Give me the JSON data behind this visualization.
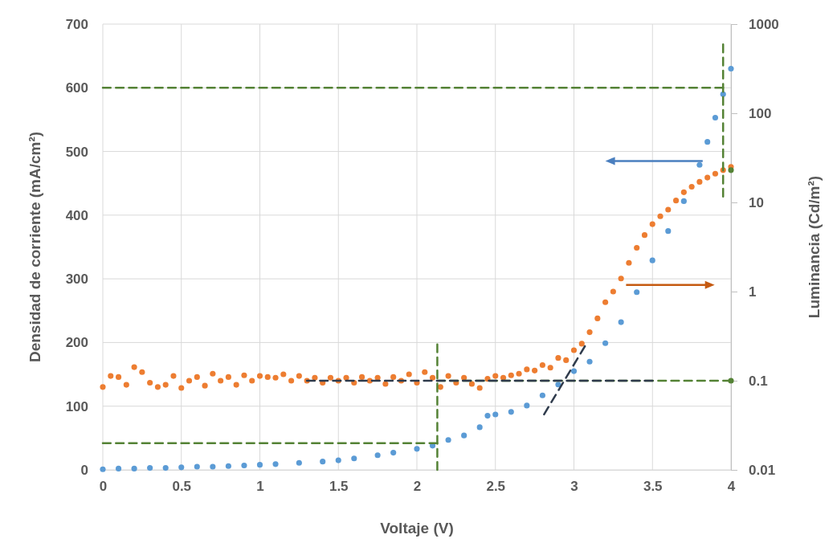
{
  "chart_data": {
    "type": "scatter",
    "xlabel": "Voltaje (V)",
    "ylabel": "Densidad de corriente (mA/cm²)",
    "y2label": "Luminancia (Cd/m²)",
    "xlim": [
      0,
      4
    ],
    "xticks": [
      0,
      0.5,
      1,
      1.5,
      2,
      2.5,
      3,
      3.5,
      4
    ],
    "ylim": [
      0,
      700
    ],
    "yticks": [
      0,
      100,
      200,
      300,
      400,
      500,
      600,
      700
    ],
    "y2lim": [
      0.01,
      1000
    ],
    "y2ticks": [
      0.01,
      0.1,
      1,
      10,
      100,
      1000
    ],
    "log": "y2",
    "grid": true,
    "series": [
      {
        "marker": "circle",
        "color": "#5b9bd5",
        "x": [
          0,
          0.1,
          0.2,
          0.3,
          0.4,
          0.5,
          0.6,
          0.7,
          0.8,
          0.9,
          1,
          1.1,
          1.25,
          1.4,
          1.5,
          1.6,
          1.75,
          1.85,
          2,
          2.1,
          2.2,
          2.3,
          2.4,
          2.45,
          2.5,
          2.6,
          2.7,
          2.8,
          2.9,
          3,
          3.1,
          3.2,
          3.3,
          3.4,
          3.5,
          3.6,
          3.7,
          3.8,
          3.85,
          3.9,
          3.95,
          4
        ],
        "values": [
          1,
          2,
          2,
          3,
          3,
          4,
          5,
          5,
          6,
          7,
          8,
          9,
          11,
          13,
          15,
          18,
          23,
          27,
          33,
          38,
          47,
          54,
          67,
          85,
          87,
          91,
          101,
          117,
          134,
          155,
          170,
          199,
          232,
          279,
          329,
          375,
          422,
          479,
          515,
          553,
          590,
          630
        ]
      },
      {
        "marker": "circle",
        "color": "#ed7d31",
        "axis": "y2",
        "x": [
          0,
          0.05,
          0.1,
          0.15,
          0.2,
          0.25,
          0.3,
          0.35,
          0.4,
          0.45,
          0.5,
          0.55,
          0.6,
          0.65,
          0.7,
          0.75,
          0.8,
          0.85,
          0.9,
          0.95,
          1,
          1.05,
          1.1,
          1.15,
          1.2,
          1.25,
          1.3,
          1.35,
          1.4,
          1.45,
          1.5,
          1.55,
          1.6,
          1.65,
          1.7,
          1.75,
          1.8,
          1.85,
          1.9,
          1.95,
          2,
          2.05,
          2.1,
          2.15,
          2.2,
          2.25,
          2.3,
          2.35,
          2.4,
          2.45,
          2.5,
          2.55,
          2.6,
          2.65,
          2.7,
          2.75,
          2.8,
          2.85,
          2.9,
          2.95,
          3,
          3.05,
          3.1,
          3.15,
          3.2,
          3.25,
          3.3,
          3.35,
          3.4,
          3.45,
          3.5,
          3.55,
          3.6,
          3.65,
          3.7,
          3.75,
          3.8,
          3.85,
          3.9,
          3.95,
          4
        ],
        "values": [
          0.085,
          0.113,
          0.11,
          0.09,
          0.142,
          0.125,
          0.095,
          0.085,
          0.09,
          0.113,
          0.083,
          0.1,
          0.11,
          0.088,
          0.12,
          0.1,
          0.11,
          0.09,
          0.115,
          0.1,
          0.113,
          0.11,
          0.108,
          0.118,
          0.1,
          0.113,
          0.1,
          0.108,
          0.095,
          0.108,
          0.1,
          0.108,
          0.095,
          0.11,
          0.1,
          0.108,
          0.092,
          0.11,
          0.1,
          0.118,
          0.095,
          0.125,
          0.108,
          0.085,
          0.113,
          0.095,
          0.108,
          0.092,
          0.083,
          0.105,
          0.113,
          0.108,
          0.115,
          0.12,
          0.134,
          0.13,
          0.15,
          0.14,
          0.18,
          0.17,
          0.22,
          0.26,
          0.35,
          0.5,
          0.76,
          1,
          1.4,
          2.1,
          3.1,
          4.3,
          5.7,
          7,
          8.3,
          10.5,
          13,
          15,
          17,
          19,
          21,
          23,
          25
        ]
      },
      {
        "type": "line",
        "marker": "none",
        "line_style": "dashed",
        "color": "#548235",
        "x": [
          0,
          3.95
        ],
        "values": [
          600,
          600
        ]
      },
      {
        "type": "line",
        "marker": "none",
        "line_style": "dashed",
        "color": "#548235",
        "x": [
          3.95,
          3.95
        ],
        "values": [
          668,
          429
        ]
      },
      {
        "type": "line",
        "marker": "none",
        "line_style": "dashed",
        "color": "#548235",
        "x": [
          0,
          2.13
        ],
        "values": [
          42,
          42
        ]
      },
      {
        "type": "line",
        "marker": "none",
        "line_style": "dashed",
        "color": "#548235",
        "x": [
          2.13,
          2.13
        ],
        "values": [
          0,
          197
        ]
      },
      {
        "type": "line",
        "marker": "none",
        "line_style": "dashed",
        "color": "#548235",
        "axis": "y2",
        "x": [
          2.13,
          4
        ],
        "values": [
          0.1,
          0.1
        ]
      },
      {
        "type": "line",
        "marker": "none",
        "line_style": "dashed",
        "color": "#2f3b4c",
        "axis": "y2",
        "x": [
          1.3,
          3.5
        ],
        "values": [
          0.1,
          0.1
        ]
      },
      {
        "type": "line",
        "marker": "none",
        "line_style": "dashed",
        "color": "#2f3b4c",
        "axis": "y2",
        "x": [
          2.81,
          3.07
        ],
        "values": [
          0.042,
          0.244
        ]
      },
      {
        "marker": "circle",
        "color": "#548235",
        "axis": "y2",
        "x": [
          4,
          4
        ],
        "values": [
          0.1,
          23
        ]
      }
    ]
  }
}
